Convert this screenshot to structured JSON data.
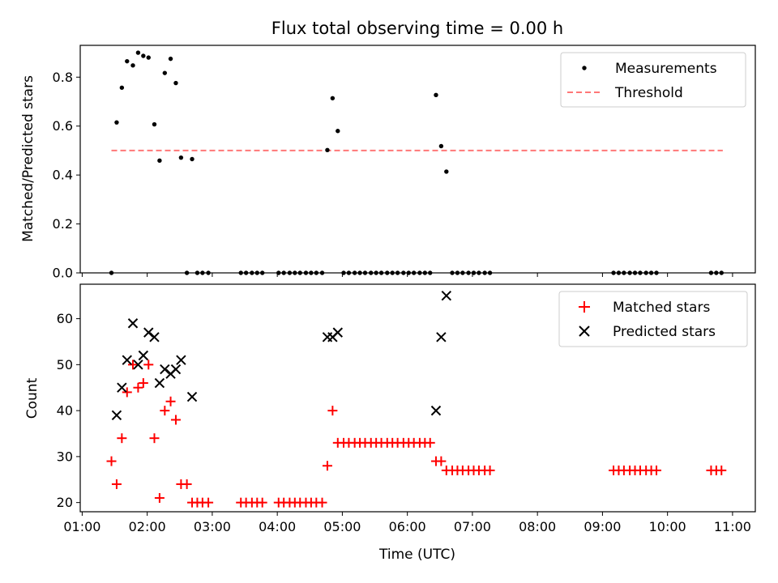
{
  "chart_data": [
    {
      "type": "scatter",
      "title": "Flux total observing time = 0.00 h",
      "xlabel": "",
      "ylabel": "Matched/Predicted stars",
      "xlim": [
        0.97,
        11.35
      ],
      "ylim": [
        0.0,
        0.93
      ],
      "yticks": [
        "0.0",
        "0.2",
        "0.4",
        "0.6",
        "0.8"
      ],
      "yticks_values": [
        0.0,
        0.2,
        0.4,
        0.6,
        0.8
      ],
      "threshold": {
        "name": "Threshold",
        "value": 0.5,
        "x_range": [
          1.45,
          10.85
        ],
        "color": "#ff7777"
      },
      "legend": {
        "position": "top-right",
        "entries": [
          "Measurements",
          "Threshold"
        ]
      },
      "series": [
        {
          "name": "Measurements",
          "color": "#000000",
          "points": [
            [
              1.45,
              0.0
            ],
            [
              1.53,
              0.615
            ],
            [
              1.61,
              0.757
            ],
            [
              1.69,
              0.865
            ],
            [
              1.78,
              0.848
            ],
            [
              1.86,
              0.9
            ],
            [
              1.94,
              0.887
            ],
            [
              2.02,
              0.88
            ],
            [
              2.11,
              0.607
            ],
            [
              2.19,
              0.459
            ],
            [
              2.27,
              0.817
            ],
            [
              2.36,
              0.875
            ],
            [
              2.44,
              0.776
            ],
            [
              2.52,
              0.471
            ],
            [
              2.61,
              0.0
            ],
            [
              2.69,
              0.465
            ],
            [
              2.77,
              0.0
            ],
            [
              2.85,
              0.0
            ],
            [
              2.94,
              0.0
            ],
            [
              3.44,
              0.0
            ],
            [
              3.52,
              0.0
            ],
            [
              3.61,
              0.0
            ],
            [
              3.69,
              0.0
            ],
            [
              3.77,
              0.0
            ],
            [
              4.02,
              0.0
            ],
            [
              4.1,
              0.0
            ],
            [
              4.19,
              0.0
            ],
            [
              4.27,
              0.0
            ],
            [
              4.35,
              0.0
            ],
            [
              4.44,
              0.0
            ],
            [
              4.52,
              0.0
            ],
            [
              4.6,
              0.0
            ],
            [
              4.69,
              0.0
            ],
            [
              4.77,
              0.502
            ],
            [
              4.85,
              0.714
            ],
            [
              4.93,
              0.58
            ],
            [
              5.02,
              0.0
            ],
            [
              5.1,
              0.0
            ],
            [
              5.19,
              0.0
            ],
            [
              5.27,
              0.0
            ],
            [
              5.35,
              0.0
            ],
            [
              5.44,
              0.0
            ],
            [
              5.52,
              0.0
            ],
            [
              5.6,
              0.0
            ],
            [
              5.69,
              0.0
            ],
            [
              5.77,
              0.0
            ],
            [
              5.85,
              0.0
            ],
            [
              5.94,
              0.0
            ],
            [
              6.02,
              0.0
            ],
            [
              6.1,
              0.0
            ],
            [
              6.19,
              0.0
            ],
            [
              6.27,
              0.0
            ],
            [
              6.35,
              0.0
            ],
            [
              6.44,
              0.727
            ],
            [
              6.52,
              0.518
            ],
            [
              6.6,
              0.414
            ],
            [
              6.69,
              0.0
            ],
            [
              6.77,
              0.0
            ],
            [
              6.85,
              0.0
            ],
            [
              6.94,
              0.0
            ],
            [
              7.02,
              0.0
            ],
            [
              7.1,
              0.0
            ],
            [
              7.19,
              0.0
            ],
            [
              7.27,
              0.0
            ],
            [
              9.17,
              0.0
            ],
            [
              9.25,
              0.0
            ],
            [
              9.33,
              0.0
            ],
            [
              9.42,
              0.0
            ],
            [
              9.5,
              0.0
            ],
            [
              9.58,
              0.0
            ],
            [
              9.67,
              0.0
            ],
            [
              9.75,
              0.0
            ],
            [
              9.83,
              0.0
            ],
            [
              10.67,
              0.0
            ],
            [
              10.75,
              0.0
            ],
            [
              10.83,
              0.0
            ]
          ]
        }
      ]
    },
    {
      "type": "scatter",
      "title": "",
      "xlabel": "Time (UTC)",
      "ylabel": "Count",
      "xlim": [
        0.97,
        11.35
      ],
      "ylim": [
        18.0,
        67.5
      ],
      "xticks": [
        "01:00",
        "02:00",
        "03:00",
        "04:00",
        "05:00",
        "06:00",
        "07:00",
        "08:00",
        "09:00",
        "10:00",
        "11:00"
      ],
      "xticks_values": [
        1,
        2,
        3,
        4,
        5,
        6,
        7,
        8,
        9,
        10,
        11
      ],
      "yticks": [
        "20",
        "30",
        "40",
        "50",
        "60"
      ],
      "yticks_values": [
        20,
        30,
        40,
        50,
        60
      ],
      "legend": {
        "position": "top-right",
        "entries": [
          "Matched stars",
          "Predicted stars"
        ]
      },
      "series": [
        {
          "name": "Matched stars",
          "marker": "plus",
          "color": "#ff0000",
          "points": [
            [
              1.45,
              29
            ],
            [
              1.53,
              24
            ],
            [
              1.61,
              34
            ],
            [
              1.69,
              44
            ],
            [
              1.78,
              50
            ],
            [
              1.86,
              45
            ],
            [
              1.94,
              46
            ],
            [
              2.02,
              50
            ],
            [
              2.11,
              34
            ],
            [
              2.19,
              21
            ],
            [
              2.27,
              40
            ],
            [
              2.36,
              42
            ],
            [
              2.44,
              38
            ],
            [
              2.52,
              24
            ],
            [
              2.61,
              24
            ],
            [
              2.69,
              20
            ],
            [
              2.77,
              20
            ],
            [
              2.85,
              20
            ],
            [
              2.94,
              20
            ],
            [
              3.44,
              20
            ],
            [
              3.52,
              20
            ],
            [
              3.61,
              20
            ],
            [
              3.69,
              20
            ],
            [
              3.77,
              20
            ],
            [
              4.02,
              20
            ],
            [
              4.1,
              20
            ],
            [
              4.19,
              20
            ],
            [
              4.27,
              20
            ],
            [
              4.35,
              20
            ],
            [
              4.44,
              20
            ],
            [
              4.52,
              20
            ],
            [
              4.6,
              20
            ],
            [
              4.69,
              20
            ],
            [
              4.77,
              28
            ],
            [
              4.85,
              40
            ],
            [
              4.93,
              33
            ],
            [
              5.02,
              33
            ],
            [
              5.1,
              33
            ],
            [
              5.19,
              33
            ],
            [
              5.27,
              33
            ],
            [
              5.35,
              33
            ],
            [
              5.44,
              33
            ],
            [
              5.52,
              33
            ],
            [
              5.6,
              33
            ],
            [
              5.69,
              33
            ],
            [
              5.77,
              33
            ],
            [
              5.85,
              33
            ],
            [
              5.94,
              33
            ],
            [
              6.02,
              33
            ],
            [
              6.1,
              33
            ],
            [
              6.19,
              33
            ],
            [
              6.27,
              33
            ],
            [
              6.35,
              33
            ],
            [
              6.44,
              29
            ],
            [
              6.52,
              29
            ],
            [
              6.6,
              27
            ],
            [
              6.69,
              27
            ],
            [
              6.77,
              27
            ],
            [
              6.85,
              27
            ],
            [
              6.94,
              27
            ],
            [
              7.02,
              27
            ],
            [
              7.1,
              27
            ],
            [
              7.19,
              27
            ],
            [
              7.27,
              27
            ],
            [
              9.17,
              27
            ],
            [
              9.25,
              27
            ],
            [
              9.33,
              27
            ],
            [
              9.42,
              27
            ],
            [
              9.5,
              27
            ],
            [
              9.58,
              27
            ],
            [
              9.67,
              27
            ],
            [
              9.75,
              27
            ],
            [
              9.83,
              27
            ],
            [
              10.67,
              27
            ],
            [
              10.75,
              27
            ],
            [
              10.83,
              27
            ]
          ]
        },
        {
          "name": "Predicted stars",
          "marker": "x",
          "color": "#000000",
          "points": [
            [
              1.53,
              39
            ],
            [
              1.61,
              45
            ],
            [
              1.69,
              51
            ],
            [
              1.78,
              59
            ],
            [
              1.86,
              50
            ],
            [
              1.94,
              52
            ],
            [
              2.02,
              57
            ],
            [
              2.11,
              56
            ],
            [
              2.19,
              46
            ],
            [
              2.27,
              49
            ],
            [
              2.36,
              48
            ],
            [
              2.44,
              49
            ],
            [
              2.52,
              51
            ],
            [
              2.69,
              43
            ],
            [
              4.77,
              56
            ],
            [
              4.85,
              56
            ],
            [
              4.93,
              57
            ],
            [
              6.44,
              40
            ],
            [
              6.52,
              56
            ],
            [
              6.6,
              65
            ]
          ]
        }
      ]
    }
  ]
}
